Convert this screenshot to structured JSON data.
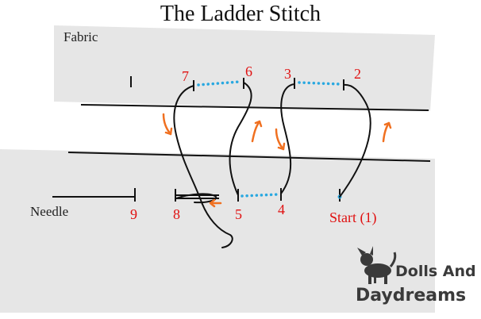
{
  "title": "The Ladder Stitch",
  "labels": {
    "fabric": "Fabric",
    "needle": "Needle"
  },
  "steps": [
    "Start (1)",
    "2",
    "3",
    "4",
    "5",
    "6",
    "7",
    "8",
    "9"
  ],
  "logo": {
    "line1": "Dolls And",
    "line2": "Daydreams"
  },
  "colors": {
    "fabric": "#e6e6e6",
    "thread": "#111111",
    "step_numbers": "#e01010",
    "arrows": "#f07020",
    "hidden_stitch": "#29a8e0",
    "logo": "#3a3a3a"
  }
}
